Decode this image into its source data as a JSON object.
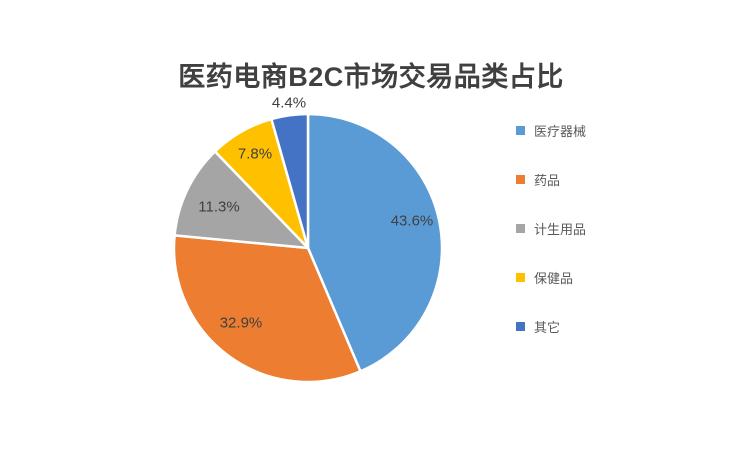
{
  "title": "医药电商B2C市场交易品类占比",
  "chart_data": {
    "type": "pie",
    "title": "医药电商B2C市场交易品类占比",
    "direction": "clockwise",
    "start_angle_deg": 0,
    "legend_position": "right",
    "categories": [
      "医疗器械",
      "药品",
      "计生用品",
      "保健品",
      "其它"
    ],
    "values": [
      43.6,
      32.9,
      11.3,
      7.8,
      4.4
    ],
    "data_labels": [
      "43.6%",
      "32.9%",
      "11.3%",
      "7.8%",
      "4.4%"
    ],
    "colors": [
      "#5B9BD5",
      "#ED7D31",
      "#A5A5A5",
      "#FFC000",
      "#4472C4"
    ],
    "slice_border_color": "#ffffff",
    "title_color": "#404040",
    "data_label_color": "#404040",
    "legend_text_color": "#595959",
    "legend": [
      {
        "label": "医疗器械",
        "color": "#5B9BD5"
      },
      {
        "label": "药品",
        "color": "#ED7D31"
      },
      {
        "label": "计生用品",
        "color": "#A5A5A5"
      },
      {
        "label": "保健品",
        "color": "#FFC000"
      },
      {
        "label": "其它",
        "color": "#4472C4"
      }
    ]
  }
}
